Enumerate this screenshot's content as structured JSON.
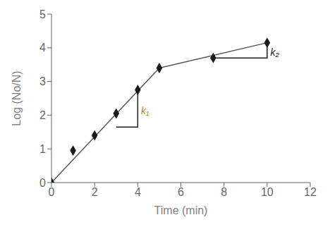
{
  "chart_data": {
    "type": "scatter",
    "xlabel": "Time (min)",
    "ylabel": "Log (No/N)",
    "xlim": [
      0,
      12
    ],
    "ylim": [
      0,
      5
    ],
    "xticks": [
      0,
      2,
      4,
      6,
      8,
      10,
      12
    ],
    "yticks": [
      0,
      1,
      2,
      3,
      4,
      5
    ],
    "series": [
      {
        "type": "line",
        "color": "#555555",
        "x": [
          0,
          5
        ],
        "values": [
          0,
          3.4
        ]
      },
      {
        "type": "line",
        "color": "#555555",
        "x": [
          5,
          10
        ],
        "values": [
          3.4,
          4.15
        ]
      },
      {
        "type": "scatter",
        "marker": "diamond",
        "color": "#1a1a1a",
        "x": [
          0,
          1,
          2,
          3,
          4,
          5,
          7.5,
          10
        ],
        "values": [
          0,
          0.95,
          1.4,
          2.05,
          2.75,
          3.4,
          3.7,
          4.15
        ]
      },
      {
        "type": "line",
        "color": "#1a1a1a",
        "x": [
          3,
          4,
          4
        ],
        "values": [
          1.65,
          1.65,
          2.75
        ]
      },
      {
        "type": "line",
        "color": "#1a1a1a",
        "x": [
          7.5,
          10,
          10
        ],
        "values": [
          3.7,
          3.7,
          4.15
        ]
      }
    ],
    "annotations": [
      {
        "text": "k₁",
        "x": 4.15,
        "y": 2.1,
        "color": "#b8860b"
      },
      {
        "text": "k₂",
        "x": 10.15,
        "y": 3.85,
        "color": "#1a1a1a"
      }
    ]
  }
}
